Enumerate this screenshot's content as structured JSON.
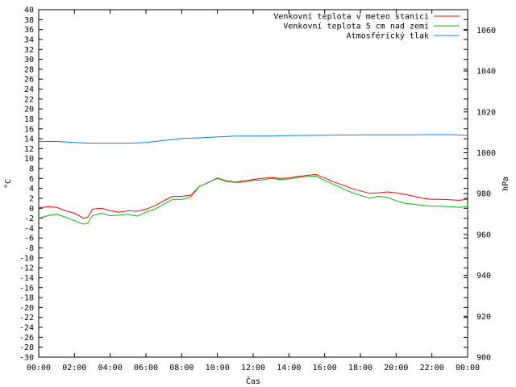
{
  "chart_data": {
    "type": "line",
    "xlabel": "Čas",
    "ylabel": "°C",
    "y2label": "hPa",
    "x_ticks": [
      "00:00",
      "02:00",
      "04:00",
      "06:00",
      "08:00",
      "10:00",
      "12:00",
      "14:00",
      "16:00",
      "18:00",
      "20:00",
      "22:00",
      "00:00"
    ],
    "xlim_hours": [
      0,
      24
    ],
    "ylim": [
      -30,
      40
    ],
    "y_tick_step": 2,
    "y2lim": [
      900,
      1070
    ],
    "y2_ticks": [
      900,
      920,
      940,
      960,
      980,
      1000,
      1020,
      1040,
      1060
    ],
    "grid": false,
    "legend_position": "top-right",
    "series": [
      {
        "name": "Venkovní teplota v meteo stanici",
        "color": "#ff0000",
        "axis": "left",
        "x": [
          0,
          0.5,
          1,
          1.5,
          2,
          2.5,
          2.75,
          3,
          3.5,
          4,
          4.5,
          5,
          5.5,
          6,
          6.5,
          7,
          7.5,
          8,
          8.5,
          9,
          9.5,
          10,
          10.5,
          11,
          11.5,
          12,
          12.5,
          13,
          13.5,
          14,
          14.5,
          15,
          15.5,
          16,
          16.5,
          17,
          17.5,
          18,
          18.5,
          19,
          19.5,
          20,
          20.5,
          21,
          21.5,
          22,
          22.5,
          23,
          23.5,
          24
        ],
        "values": [
          0.1,
          0.3,
          0.2,
          -0.5,
          -1.0,
          -2.0,
          -1.8,
          -0.2,
          0.0,
          -0.5,
          -0.8,
          -0.5,
          -0.6,
          -0.2,
          0.5,
          1.5,
          2.4,
          2.4,
          2.6,
          4.4,
          5.2,
          6.1,
          5.5,
          5.3,
          5.5,
          5.8,
          6.0,
          6.2,
          6.0,
          6.1,
          6.4,
          6.6,
          6.8,
          6.1,
          5.3,
          4.7,
          4.0,
          3.5,
          3.0,
          3.1,
          3.3,
          3.1,
          2.8,
          2.4,
          2.0,
          1.8,
          1.8,
          1.7,
          1.6,
          1.8
        ]
      },
      {
        "name": "Venkovní teplota 5 cm nad zemí",
        "color": "#00c000",
        "axis": "left",
        "x": [
          0,
          0.5,
          1,
          1.5,
          2,
          2.5,
          2.75,
          3,
          3.5,
          4,
          4.5,
          5,
          5.5,
          6,
          6.5,
          7,
          7.5,
          8,
          8.5,
          9,
          9.5,
          10,
          10.5,
          11,
          11.5,
          12,
          12.5,
          13,
          13.5,
          14,
          14.5,
          15,
          15.5,
          16,
          16.5,
          17,
          17.5,
          18,
          18.5,
          19,
          19.5,
          20,
          20.5,
          21,
          21.5,
          22,
          22.5,
          23,
          23.5,
          24
        ],
        "values": [
          -2.0,
          -1.5,
          -1.2,
          -1.8,
          -2.5,
          -3.2,
          -3.0,
          -1.5,
          -1.0,
          -1.5,
          -1.4,
          -1.2,
          -1.6,
          -0.8,
          -0.2,
          0.8,
          1.8,
          1.8,
          2.2,
          4.4,
          5.2,
          6.0,
          5.4,
          5.2,
          5.3,
          5.6,
          5.7,
          6.0,
          5.8,
          5.9,
          6.2,
          6.4,
          6.5,
          5.6,
          4.8,
          4.0,
          3.2,
          2.6,
          2.0,
          2.4,
          2.2,
          1.5,
          1.0,
          0.8,
          0.6,
          0.4,
          0.4,
          0.3,
          0.2,
          0.3
        ]
      },
      {
        "name": "Atmosférický tlak",
        "color": "#0080ff",
        "axis": "right",
        "x": [
          0,
          1,
          2,
          3,
          4,
          5,
          6,
          7,
          8,
          9,
          10,
          11,
          12,
          13,
          14,
          15,
          16,
          17,
          18,
          19,
          20,
          21,
          22,
          23,
          24
        ],
        "values": [
          1005.5,
          1005.5,
          1005.0,
          1004.7,
          1004.7,
          1004.7,
          1005.0,
          1006.0,
          1007.0,
          1007.3,
          1007.7,
          1008.2,
          1008.2,
          1008.2,
          1008.4,
          1008.5,
          1008.5,
          1008.7,
          1008.8,
          1008.8,
          1008.8,
          1008.8,
          1008.9,
          1008.9,
          1008.5
        ]
      }
    ]
  }
}
